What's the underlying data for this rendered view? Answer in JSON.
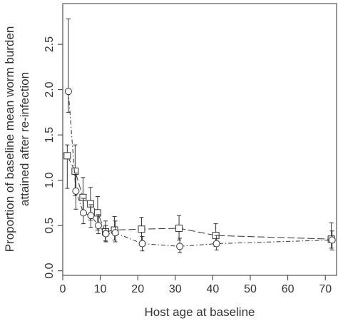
{
  "chart_data": {
    "type": "line",
    "title": "",
    "xlabel": "Host age at baseline",
    "ylabel_lines": [
      "Proportion of baseline mean worm burden",
      "attained after re-infection"
    ],
    "xlim": [
      0,
      73
    ],
    "ylim": [
      -0.05,
      2.95
    ],
    "x_ticks": [
      0,
      10,
      20,
      30,
      40,
      50,
      60,
      70
    ],
    "y_ticks": [
      0.0,
      0.5,
      1.0,
      1.5,
      2.0,
      2.5
    ],
    "y_tick_labels": [
      "0.0",
      "0.5",
      "1.0",
      "1.5",
      "2.0",
      "2.5"
    ],
    "grid": false,
    "series": [
      {
        "marker": "square",
        "line_style": "long-dash",
        "points": [
          {
            "x": 1.2,
            "y": 1.27,
            "lo": 0.91,
            "hi": 1.39
          },
          {
            "x": 3.3,
            "y": 1.1,
            "lo": 0.83,
            "hi": 1.39
          },
          {
            "x": 5.4,
            "y": 0.81,
            "lo": 0.63,
            "hi": 1.03
          },
          {
            "x": 7.4,
            "y": 0.74,
            "lo": 0.56,
            "hi": 0.92
          },
          {
            "x": 9.3,
            "y": 0.64,
            "lo": 0.45,
            "hi": 0.82
          },
          {
            "x": 11.4,
            "y": 0.43,
            "lo": 0.33,
            "hi": 0.55
          },
          {
            "x": 13.8,
            "y": 0.45,
            "lo": 0.34,
            "hi": 0.6
          },
          {
            "x": 21.0,
            "y": 0.46,
            "lo": 0.32,
            "hi": 0.59
          },
          {
            "x": 31.0,
            "y": 0.47,
            "lo": 0.34,
            "hi": 0.61
          },
          {
            "x": 40.8,
            "y": 0.39,
            "lo": 0.27,
            "hi": 0.52
          },
          {
            "x": 71.6,
            "y": 0.35,
            "lo": 0.25,
            "hi": 0.53
          }
        ]
      },
      {
        "marker": "circle",
        "line_style": "dash-dot",
        "points": [
          {
            "x": 1.5,
            "y": 1.98,
            "lo": 1.75,
            "hi": 2.78
          },
          {
            "x": 3.5,
            "y": 0.88,
            "lo": 0.68,
            "hi": 1.08
          },
          {
            "x": 5.5,
            "y": 0.64,
            "lo": 0.52,
            "hi": 0.8
          },
          {
            "x": 7.5,
            "y": 0.61,
            "lo": 0.48,
            "hi": 0.73
          },
          {
            "x": 9.5,
            "y": 0.5,
            "lo": 0.41,
            "hi": 0.62
          },
          {
            "x": 11.5,
            "y": 0.41,
            "lo": 0.32,
            "hi": 0.5
          },
          {
            "x": 14.0,
            "y": 0.42,
            "lo": 0.32,
            "hi": 0.55
          },
          {
            "x": 21.2,
            "y": 0.3,
            "lo": 0.22,
            "hi": 0.38
          },
          {
            "x": 31.2,
            "y": 0.27,
            "lo": 0.2,
            "hi": 0.36
          },
          {
            "x": 41.0,
            "y": 0.3,
            "lo": 0.23,
            "hi": 0.39
          },
          {
            "x": 71.8,
            "y": 0.34,
            "lo": 0.23,
            "hi": 0.44
          }
        ]
      }
    ],
    "colors": {
      "ink": "#333333",
      "background": "#ffffff"
    }
  }
}
